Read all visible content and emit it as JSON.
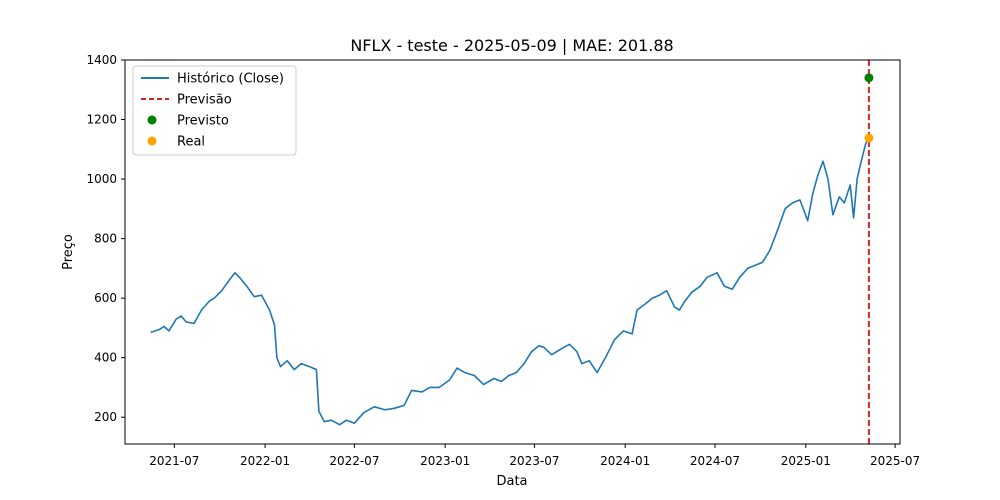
{
  "chart_data": {
    "type": "line",
    "title": "NFLX - teste - 2025-05-09 | MAE: 201.88",
    "xlabel": "Data",
    "ylabel": "Preço",
    "xlim": [
      "2021-03-23",
      "2025-07-11"
    ],
    "ylim": [
      110,
      1400
    ],
    "x_ticks": [
      {
        "value": "2021-07-01",
        "label": "2021-07"
      },
      {
        "value": "2022-01-01",
        "label": "2022-01"
      },
      {
        "value": "2022-07-01",
        "label": "2022-07"
      },
      {
        "value": "2023-01-01",
        "label": "2023-01"
      },
      {
        "value": "2023-07-01",
        "label": "2023-07"
      },
      {
        "value": "2024-01-01",
        "label": "2024-01"
      },
      {
        "value": "2024-07-01",
        "label": "2024-07"
      },
      {
        "value": "2025-01-01",
        "label": "2025-01"
      },
      {
        "value": "2025-07-01",
        "label": "2025-07"
      }
    ],
    "y_ticks": [
      200,
      400,
      600,
      800,
      1000,
      1200,
      1400
    ],
    "grid": false,
    "legend_position": "top-left",
    "series": [
      {
        "name": "Histórico (Close)",
        "kind": "line",
        "color": "#1f77b4",
        "x": [
          "2021-05-14",
          "2021-06-01",
          "2021-06-10",
          "2021-06-20",
          "2021-07-05",
          "2021-07-15",
          "2021-07-25",
          "2021-08-10",
          "2021-08-25",
          "2021-09-10",
          "2021-09-20",
          "2021-10-05",
          "2021-10-20",
          "2021-11-01",
          "2021-11-10",
          "2021-11-25",
          "2021-12-10",
          "2021-12-25",
          "2022-01-10",
          "2022-01-20",
          "2022-01-25",
          "2022-02-01",
          "2022-02-15",
          "2022-03-01",
          "2022-03-15",
          "2022-04-01",
          "2022-04-15",
          "2022-04-20",
          "2022-05-01",
          "2022-05-15",
          "2022-06-01",
          "2022-06-15",
          "2022-07-01",
          "2022-07-20",
          "2022-08-10",
          "2022-09-01",
          "2022-09-20",
          "2022-10-10",
          "2022-10-25",
          "2022-11-15",
          "2022-12-01",
          "2022-12-20",
          "2023-01-10",
          "2023-01-25",
          "2023-02-10",
          "2023-03-01",
          "2023-03-20",
          "2023-04-10",
          "2023-04-25",
          "2023-05-10",
          "2023-05-25",
          "2023-06-10",
          "2023-06-25",
          "2023-07-10",
          "2023-07-20",
          "2023-08-05",
          "2023-08-25",
          "2023-09-10",
          "2023-09-25",
          "2023-10-05",
          "2023-10-20",
          "2023-11-05",
          "2023-11-25",
          "2023-12-10",
          "2023-12-28",
          "2024-01-15",
          "2024-01-25",
          "2024-02-10",
          "2024-02-25",
          "2024-03-10",
          "2024-03-25",
          "2024-04-10",
          "2024-04-20",
          "2024-05-01",
          "2024-05-15",
          "2024-06-01",
          "2024-06-15",
          "2024-07-05",
          "2024-07-20",
          "2024-08-05",
          "2024-08-20",
          "2024-09-05",
          "2024-09-20",
          "2024-10-05",
          "2024-10-20",
          "2024-11-05",
          "2024-11-20",
          "2024-12-05",
          "2024-12-20",
          "2025-01-05",
          "2025-01-15",
          "2025-01-25",
          "2025-02-05",
          "2025-02-15",
          "2025-02-25",
          "2025-03-10",
          "2025-03-20",
          "2025-04-01",
          "2025-04-08",
          "2025-04-15",
          "2025-04-22",
          "2025-05-01",
          "2025-05-09"
        ],
        "values": [
          485,
          495,
          505,
          490,
          530,
          540,
          520,
          515,
          560,
          590,
          600,
          625,
          660,
          685,
          670,
          640,
          605,
          610,
          560,
          510,
          400,
          370,
          390,
          360,
          380,
          370,
          360,
          220,
          185,
          190,
          175,
          190,
          180,
          215,
          235,
          225,
          230,
          240,
          290,
          285,
          300,
          300,
          325,
          365,
          350,
          340,
          310,
          330,
          320,
          340,
          350,
          380,
          420,
          440,
          435,
          410,
          430,
          445,
          420,
          380,
          390,
          350,
          410,
          460,
          490,
          480,
          560,
          580,
          600,
          610,
          625,
          570,
          560,
          590,
          620,
          640,
          670,
          685,
          640,
          630,
          670,
          700,
          710,
          720,
          760,
          830,
          900,
          920,
          930,
          860,
          950,
          1010,
          1060,
          1000,
          880,
          940,
          920,
          980,
          870,
          1000,
          1050,
          1110,
          1150
        ]
      },
      {
        "name": "Previsão",
        "kind": "vline",
        "color": "#d62728",
        "x": "2025-05-09"
      },
      {
        "name": "Previsto",
        "kind": "point",
        "color": "#008000",
        "x": [
          "2025-05-09"
        ],
        "values": [
          1340
        ]
      },
      {
        "name": "Real",
        "kind": "point",
        "color": "#ffa500",
        "x": [
          "2025-05-09"
        ],
        "values": [
          1138
        ]
      }
    ]
  }
}
